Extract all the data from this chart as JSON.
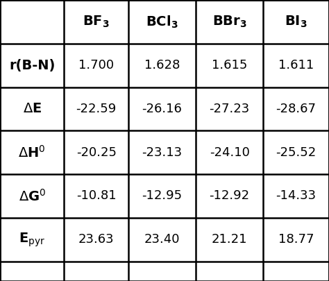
{
  "col_headers": [
    "",
    "BF$_3$",
    "BCl$_3$",
    "BBr$_3$",
    "BI$_3$"
  ],
  "col_headers_plain": [
    "",
    "BF3",
    "BCl3",
    "BBr3",
    "BI3"
  ],
  "row_labels": [
    "r(B-N)",
    "ΔE",
    "ΔH$^0$",
    "ΔG$^0$",
    "E$_{pyr}$"
  ],
  "row_labels_bold": [
    true,
    true,
    true,
    true,
    true
  ],
  "data": [
    [
      "1.700",
      "1.628",
      "1.615",
      "1.611"
    ],
    [
      "-22.59",
      "-26.16",
      "-27.23",
      "-28.67"
    ],
    [
      "-20.25",
      "-23.13",
      "-24.10",
      "-25.52"
    ],
    [
      "-10.81",
      "-12.95",
      "-12.92",
      "-14.33"
    ],
    [
      "23.63",
      "23.40",
      "21.21",
      "18.77"
    ]
  ],
  "bg_color": "#ffffff",
  "line_color": "#000000",
  "text_color": "#000000",
  "header_fontsize": 14,
  "cell_fontsize": 13,
  "row_label_fontsize": 14,
  "fig_width": 4.74,
  "fig_height": 4.05
}
